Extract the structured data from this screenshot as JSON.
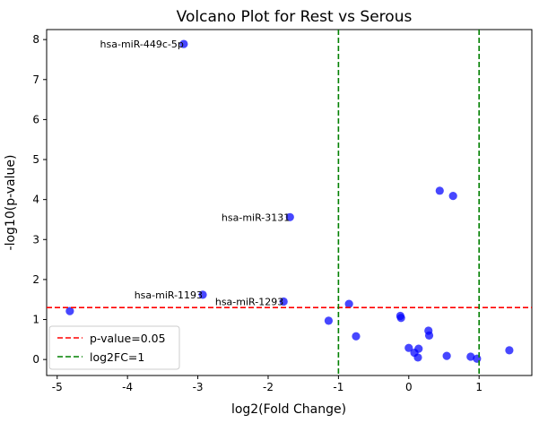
{
  "chart_data": {
    "type": "scatter",
    "title": "Volcano Plot for Rest vs Serous",
    "xlabel": "log2(Fold Change)",
    "ylabel": "-log10(p-value)",
    "xlim": [
      -5.15,
      1.75
    ],
    "ylim": [
      -0.4,
      8.25
    ],
    "x_ticks": [
      -5,
      -4,
      -3,
      -2,
      -1,
      0,
      1
    ],
    "y_ticks": [
      0,
      1,
      2,
      3,
      4,
      5,
      6,
      7,
      8
    ],
    "grid": false,
    "point_color": "#0000ff",
    "points": [
      {
        "x": -4.82,
        "y": 1.21
      },
      {
        "x": -3.2,
        "y": 7.89
      },
      {
        "x": -2.93,
        "y": 1.62
      },
      {
        "x": -1.78,
        "y": 1.45
      },
      {
        "x": -1.69,
        "y": 3.56
      },
      {
        "x": -1.14,
        "y": 0.97
      },
      {
        "x": -0.85,
        "y": 1.39
      },
      {
        "x": -0.75,
        "y": 0.58
      },
      {
        "x": -0.12,
        "y": 1.09
      },
      {
        "x": -0.11,
        "y": 1.04
      },
      {
        "x": 0.0,
        "y": 0.29
      },
      {
        "x": 0.08,
        "y": 0.17
      },
      {
        "x": 0.13,
        "y": 0.05
      },
      {
        "x": 0.14,
        "y": 0.27
      },
      {
        "x": 0.28,
        "y": 0.72
      },
      {
        "x": 0.29,
        "y": 0.6
      },
      {
        "x": 0.44,
        "y": 4.22
      },
      {
        "x": 0.54,
        "y": 0.09
      },
      {
        "x": 0.63,
        "y": 4.09
      },
      {
        "x": 0.88,
        "y": 0.07
      },
      {
        "x": 0.97,
        "y": 0.02
      },
      {
        "x": 1.43,
        "y": 0.23
      }
    ],
    "annotations": [
      {
        "text": "hsa-miR-449c-5p",
        "x": -3.2,
        "y": 7.89
      },
      {
        "text": "hsa-miR-3131",
        "x": -1.69,
        "y": 3.56
      },
      {
        "text": "hsa-miR-1193",
        "x": -2.93,
        "y": 1.62
      },
      {
        "text": "hsa-miR-1293",
        "x": -1.78,
        "y": 1.45
      }
    ],
    "reference_lines": [
      {
        "orientation": "horizontal",
        "value": 1.3,
        "color": "#ff0000",
        "style": "dashed",
        "label": "p-value=0.05"
      },
      {
        "orientation": "vertical",
        "value": -1,
        "color": "#008000",
        "style": "dashed",
        "label": "log2FC=1"
      },
      {
        "orientation": "vertical",
        "value": 1,
        "color": "#008000",
        "style": "dashed",
        "label": ""
      }
    ],
    "legend": {
      "placement": "lower-left",
      "entries": [
        "p-value=0.05",
        "log2FC=1"
      ]
    }
  }
}
